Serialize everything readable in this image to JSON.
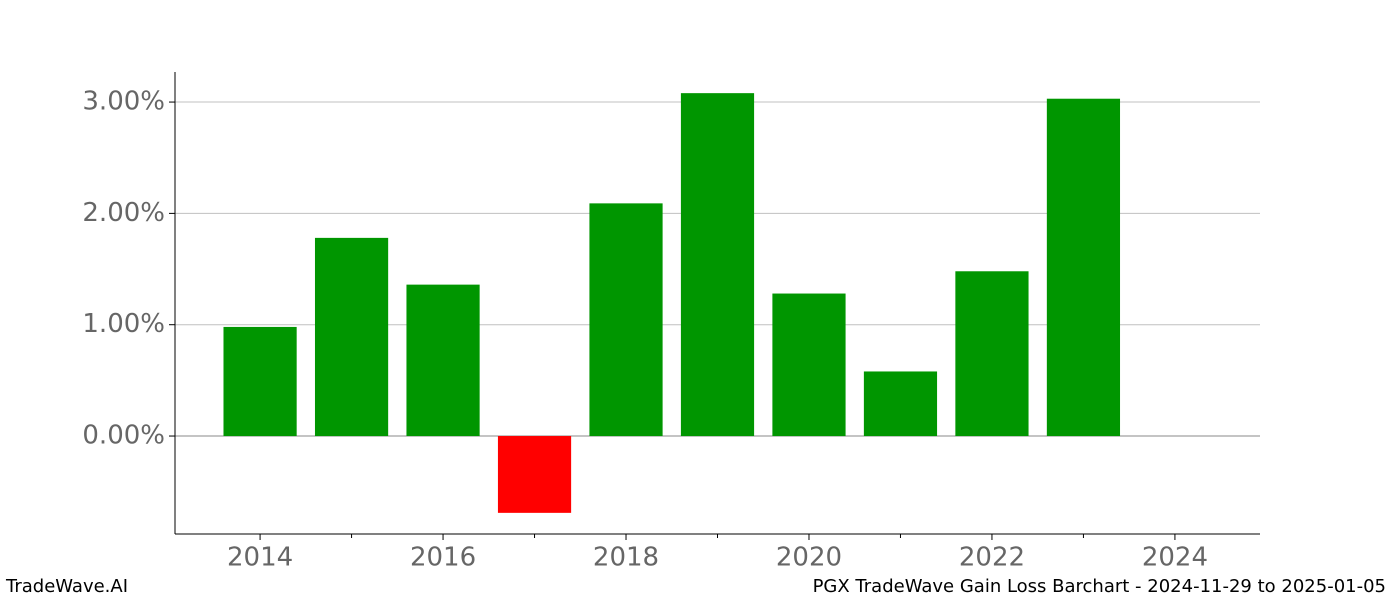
{
  "chart_data": {
    "type": "bar",
    "x": [
      2014,
      2015,
      2016,
      2017,
      2018,
      2019,
      2020,
      2021,
      2022,
      2023
    ],
    "values": [
      0.98,
      1.78,
      1.36,
      -0.69,
      2.09,
      3.08,
      1.28,
      0.58,
      1.48,
      3.03
    ],
    "positive_color": "#009600",
    "negative_color": "#ff0000",
    "bar_width": 0.8,
    "xlim": [
      2013.07,
      2024.93
    ],
    "ylim": [
      -0.88,
      3.27
    ],
    "xticks": [
      2014,
      2016,
      2018,
      2020,
      2022,
      2024
    ],
    "xminorticks": [
      2015,
      2017,
      2019,
      2021,
      2023
    ],
    "yticks": [
      {
        "value": 0,
        "label": "0.00%"
      },
      {
        "value": 1,
        "label": "1.00%"
      },
      {
        "value": 2,
        "label": "2.00%"
      },
      {
        "value": 3,
        "label": "3.00%"
      }
    ],
    "grid": true
  },
  "footer": {
    "left": "TradeWave.AI",
    "right": "PGX TradeWave Gain Loss Barchart - 2024-11-29 to 2025-01-05"
  }
}
